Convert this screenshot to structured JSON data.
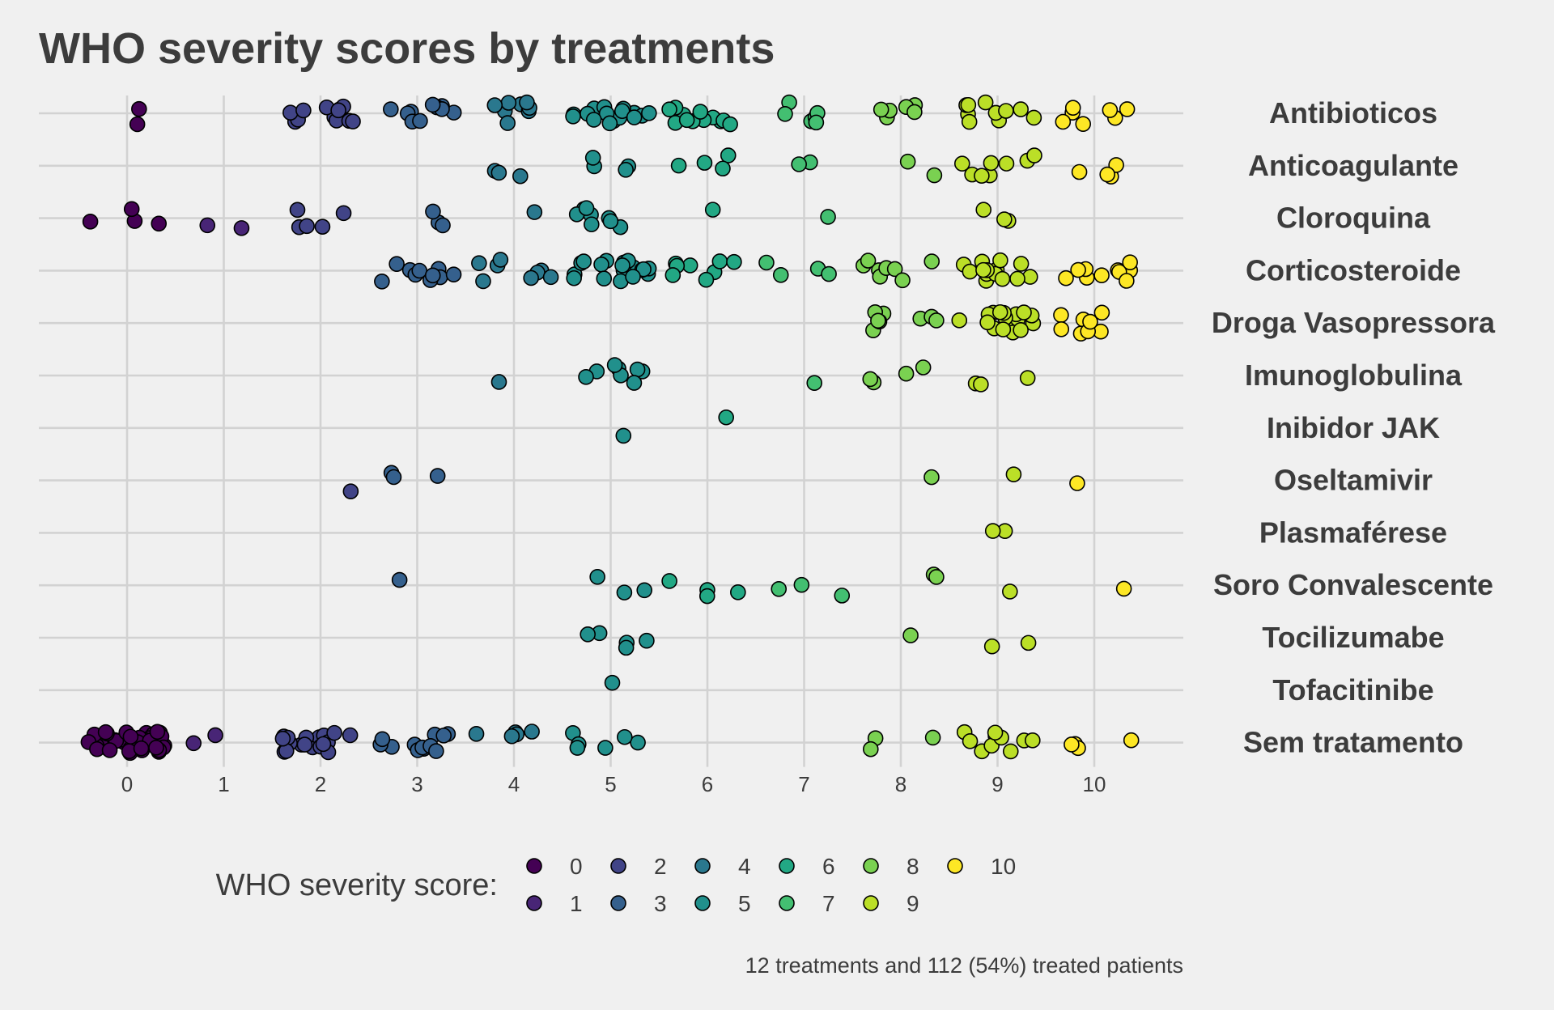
{
  "chart_data": {
    "type": "scatter",
    "title": "WHO severity scores by treatments",
    "xlabel": "",
    "ylabel": "",
    "xlim": [
      -0.9,
      10.9
    ],
    "x_ticks": [
      "0",
      "1",
      "2",
      "3",
      "4",
      "5",
      "6",
      "7",
      "8",
      "9",
      "10"
    ],
    "grid": true,
    "legend": {
      "title": "WHO severity score:",
      "placement": "bottom",
      "entries": [
        {
          "label": "0",
          "color": "#440154"
        },
        {
          "label": "1",
          "color": "#482576"
        },
        {
          "label": "2",
          "color": "#414487"
        },
        {
          "label": "3",
          "color": "#35608d"
        },
        {
          "label": "4",
          "color": "#2a788e"
        },
        {
          "label": "5",
          "color": "#21908c"
        },
        {
          "label": "6",
          "color": "#22a884"
        },
        {
          "label": "7",
          "color": "#43bf71"
        },
        {
          "label": "8",
          "color": "#7ad151"
        },
        {
          "label": "9",
          "color": "#bbdf27"
        },
        {
          "label": "10",
          "color": "#fde725"
        }
      ]
    },
    "caption": "12 treatments and 112 (54%) treated patients",
    "categories": [
      "Antibioticos",
      "Anticoagulante",
      "Cloroquina",
      "Corticosteroide",
      "Droga Vasopressora",
      "Imunoglobulina",
      "Inibidor JAK",
      "Oseltamivir",
      "Plasmaférese",
      "Soro Convalescente",
      "Tocilizumabe",
      "Tofacitinibe",
      "Sem tratamento"
    ],
    "series": [
      {
        "category": "Antibioticos",
        "points": [
          [
            0,
            2
          ],
          [
            1,
            0
          ],
          [
            2,
            12
          ],
          [
            3,
            10
          ],
          [
            4,
            8
          ],
          [
            5,
            16
          ],
          [
            6,
            12
          ],
          [
            7,
            6
          ],
          [
            8,
            6
          ],
          [
            9,
            10
          ],
          [
            10,
            7
          ]
        ]
      },
      {
        "category": "Anticoagulante",
        "points": [
          [
            4,
            3
          ],
          [
            5,
            4
          ],
          [
            6,
            4
          ],
          [
            7,
            2
          ],
          [
            8,
            2
          ],
          [
            9,
            8
          ],
          [
            10,
            4
          ]
        ]
      },
      {
        "category": "Cloroquina",
        "points": [
          [
            0,
            4
          ],
          [
            1,
            2
          ],
          [
            2,
            5
          ],
          [
            3,
            3
          ],
          [
            4,
            1
          ],
          [
            5,
            8
          ],
          [
            6,
            1
          ],
          [
            7,
            1
          ],
          [
            9,
            3
          ]
        ]
      },
      {
        "category": "Corticosteroide",
        "points": [
          [
            3,
            10
          ],
          [
            4,
            8
          ],
          [
            5,
            18
          ],
          [
            6,
            8
          ],
          [
            7,
            4
          ],
          [
            8,
            8
          ],
          [
            9,
            14
          ],
          [
            10,
            10
          ]
        ]
      },
      {
        "category": "Droga Vasopressora",
        "points": [
          [
            8,
            8
          ],
          [
            9,
            18
          ],
          [
            10,
            8
          ]
        ]
      },
      {
        "category": "Imunoglobulina",
        "points": [
          [
            4,
            1
          ],
          [
            5,
            8
          ],
          [
            7,
            1
          ],
          [
            8,
            4
          ],
          [
            9,
            3
          ]
        ]
      },
      {
        "category": "Inibidor JAK",
        "points": [
          [
            5,
            1
          ],
          [
            6,
            1
          ]
        ]
      },
      {
        "category": "Oseltamivir",
        "points": [
          [
            2,
            1
          ],
          [
            3,
            3
          ],
          [
            8,
            1
          ],
          [
            9,
            1
          ],
          [
            10,
            1
          ]
        ]
      },
      {
        "category": "Plasmaférese",
        "points": [
          [
            9,
            2
          ]
        ]
      },
      {
        "category": "Soro Convalescente",
        "points": [
          [
            3,
            1
          ],
          [
            5,
            3
          ],
          [
            6,
            4
          ],
          [
            7,
            3
          ],
          [
            8,
            2
          ],
          [
            9,
            1
          ],
          [
            10,
            1
          ]
        ]
      },
      {
        "category": "Tocilizumabe",
        "points": [
          [
            5,
            5
          ],
          [
            8,
            1
          ],
          [
            9,
            2
          ]
        ]
      },
      {
        "category": "Tofacitinibe",
        "points": [
          [
            5,
            1
          ]
        ]
      },
      {
        "category": "Sem tratamento",
        "points": [
          [
            0,
            45
          ],
          [
            1,
            2
          ],
          [
            2,
            18
          ],
          [
            3,
            12
          ],
          [
            4,
            5
          ],
          [
            5,
            6
          ],
          [
            8,
            3
          ],
          [
            9,
            10
          ],
          [
            10,
            4
          ]
        ]
      }
    ]
  }
}
